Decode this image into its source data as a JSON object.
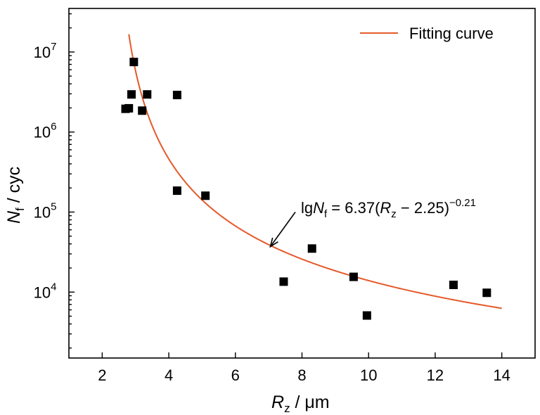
{
  "chart_data": {
    "type": "scatter",
    "x_axis": {
      "label_symbol": "R",
      "label_subscript": "z",
      "label_unit": " / μm",
      "range": [
        1,
        15
      ],
      "ticks": [
        2,
        4,
        6,
        8,
        10,
        12,
        14
      ],
      "tick_labels": [
        "2",
        "4",
        "6",
        "8",
        "10",
        "12",
        "14"
      ]
    },
    "y_axis": {
      "label_symbol": "N",
      "label_subscript": "f",
      "label_unit": " / cyc",
      "scale": "log",
      "range": [
        1500,
        35000000
      ],
      "ticks": [
        10000,
        100000,
        1000000,
        10000000
      ],
      "tick_labels": [
        {
          "base": "10",
          "exp": "4"
        },
        {
          "base": "10",
          "exp": "5"
        },
        {
          "base": "10",
          "exp": "6"
        },
        {
          "base": "10",
          "exp": "7"
        }
      ]
    },
    "points": [
      {
        "x": 2.7,
        "y": 1950000
      },
      {
        "x": 2.8,
        "y": 1980000
      },
      {
        "x": 2.88,
        "y": 2950000
      },
      {
        "x": 2.95,
        "y": 7500000
      },
      {
        "x": 3.2,
        "y": 1850000
      },
      {
        "x": 3.35,
        "y": 2950000
      },
      {
        "x": 4.25,
        "y": 2900000
      },
      {
        "x": 4.25,
        "y": 185000
      },
      {
        "x": 5.1,
        "y": 160000
      },
      {
        "x": 7.45,
        "y": 13500
      },
      {
        "x": 8.3,
        "y": 35000
      },
      {
        "x": 9.55,
        "y": 15500
      },
      {
        "x": 9.95,
        "y": 5100
      },
      {
        "x": 12.55,
        "y": 12300
      },
      {
        "x": 13.55,
        "y": 9800
      }
    ],
    "fit": {
      "legend": "Fitting curve",
      "x_start": 2.8,
      "x_end": 14.0,
      "a": 6.37,
      "b": 2.25,
      "c": -0.21,
      "equation": {
        "lg": "lg",
        "N": "N",
        "Nsub": "f",
        "mid": " = 6.37(",
        "R": "R",
        "Rsub": "z",
        "tail": " − 2.25)",
        "exp": "−0.21"
      },
      "arrow_from": {
        "x": 7.8,
        "y": 100000
      },
      "arrow_to": {
        "x": 7.05,
        "y": 37000
      }
    },
    "legend_position": "top-right",
    "grid": false,
    "colors": {
      "points": "#000000",
      "fit": "#E5592A",
      "axes": "#000000"
    }
  }
}
